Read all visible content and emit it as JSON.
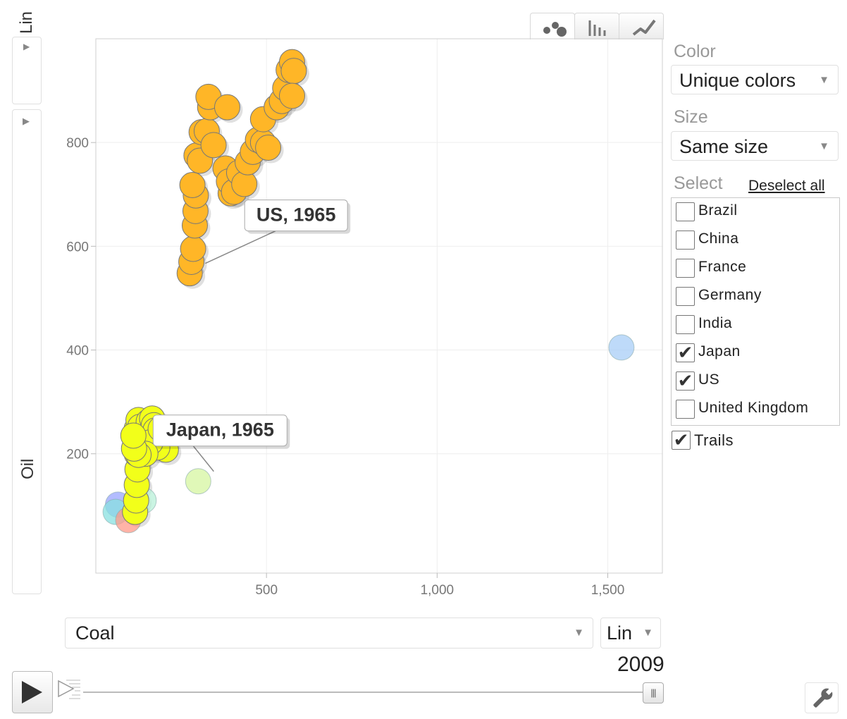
{
  "y_axis": {
    "scale_label": "Lin",
    "variable_label": "Oil"
  },
  "x_axis": {
    "variable_label": "Coal",
    "scale_label": "Lin"
  },
  "chart_type_tabs": [
    "bubble-chart-icon",
    "bar-chart-icon",
    "line-chart-icon"
  ],
  "panel": {
    "color_title": "Color",
    "color_value": "Unique colors",
    "size_title": "Size",
    "size_value": "Same size",
    "select_title": "Select",
    "deselect_all": "Deselect all",
    "countries": [
      {
        "label": "Brazil",
        "checked": false
      },
      {
        "label": "China",
        "checked": false
      },
      {
        "label": "France",
        "checked": false
      },
      {
        "label": "Germany",
        "checked": false
      },
      {
        "label": "India",
        "checked": false
      },
      {
        "label": "Japan",
        "checked": true
      },
      {
        "label": "US",
        "checked": true
      },
      {
        "label": "United Kingdom",
        "checked": false
      }
    ],
    "trails_label": "Trails",
    "trails_checked": true
  },
  "timeline": {
    "year": "2009",
    "play_icon": "play-icon",
    "settings_icon": "wrench-icon"
  },
  "chart_data": {
    "type": "scatter",
    "title": "",
    "xlabel": "Coal",
    "ylabel": "Oil",
    "x_ticks": [
      500,
      1000,
      1500
    ],
    "x_tick_labels": [
      "500",
      "1,000",
      "1,500"
    ],
    "y_ticks": [
      200,
      400,
      600,
      800
    ],
    "y_tick_labels": [
      "200",
      "400",
      "600",
      "800"
    ],
    "xlim": [
      0,
      1660
    ],
    "ylim": [
      -30,
      1000
    ],
    "grid": true,
    "colors": {
      "US": "#ffb627",
      "Japan": "#f2ff1a",
      "China": "#a8cdf7",
      "Brazil": "#9aa6ff",
      "Germany": "#ff9a8a",
      "France": "#88e0e0",
      "India": "#d6f5a0",
      "United Kingdom": "#b8f0d8"
    },
    "series": [
      {
        "name": "US",
        "selected": true,
        "points": [
          [
            275,
            548
          ],
          [
            280,
            570
          ],
          [
            285,
            595
          ],
          [
            290,
            640
          ],
          [
            292,
            668
          ],
          [
            293,
            698
          ],
          [
            283,
            718
          ],
          [
            295,
            775
          ],
          [
            305,
            765
          ],
          [
            310,
            820
          ],
          [
            325,
            822
          ],
          [
            335,
            868
          ],
          [
            330,
            888
          ],
          [
            385,
            868
          ],
          [
            345,
            795
          ],
          [
            380,
            750
          ],
          [
            395,
            702
          ],
          [
            390,
            725
          ],
          [
            405,
            705
          ],
          [
            420,
            742
          ],
          [
            435,
            720
          ],
          [
            445,
            762
          ],
          [
            460,
            782
          ],
          [
            475,
            805
          ],
          [
            490,
            800
          ],
          [
            505,
            790
          ],
          [
            490,
            845
          ],
          [
            530,
            868
          ],
          [
            545,
            880
          ],
          [
            555,
            905
          ],
          [
            565,
            940
          ],
          [
            575,
            955
          ],
          [
            580,
            938
          ],
          [
            575,
            890
          ]
        ]
      },
      {
        "name": "Japan",
        "selected": true,
        "points": [
          [
            115,
            88
          ],
          [
            118,
            110
          ],
          [
            120,
            140
          ],
          [
            122,
            170
          ],
          [
            120,
            200
          ],
          [
            118,
            225
          ],
          [
            120,
            248
          ],
          [
            125,
            265
          ],
          [
            130,
            252
          ],
          [
            140,
            240
          ],
          [
            150,
            230
          ],
          [
            155,
            262
          ],
          [
            165,
            268
          ],
          [
            170,
            255
          ],
          [
            175,
            245
          ],
          [
            185,
            232
          ],
          [
            195,
            228
          ],
          [
            205,
            208
          ],
          [
            180,
            212
          ],
          [
            160,
            222
          ],
          [
            145,
            200
          ],
          [
            125,
            198
          ],
          [
            112,
            210
          ],
          [
            110,
            235
          ],
          [
            190,
            248
          ]
        ]
      },
      {
        "name": "Brazil",
        "selected": false,
        "points": [
          [
            65,
            102
          ]
        ]
      },
      {
        "name": "France",
        "selected": false,
        "points": [
          [
            58,
            88
          ]
        ]
      },
      {
        "name": "United Kingdom",
        "selected": false,
        "points": [
          [
            140,
            110
          ]
        ]
      },
      {
        "name": "Germany",
        "selected": false,
        "points": [
          [
            95,
            72
          ]
        ]
      },
      {
        "name": "India",
        "selected": false,
        "points": [
          [
            300,
            147
          ]
        ]
      },
      {
        "name": "China",
        "selected": false,
        "points": [
          [
            1540,
            405
          ]
        ]
      }
    ],
    "annotations": [
      {
        "label": "US, 1965",
        "x": 275,
        "y": 548
      },
      {
        "label": "Japan, 1965",
        "x": 300,
        "y": 147
      }
    ]
  }
}
